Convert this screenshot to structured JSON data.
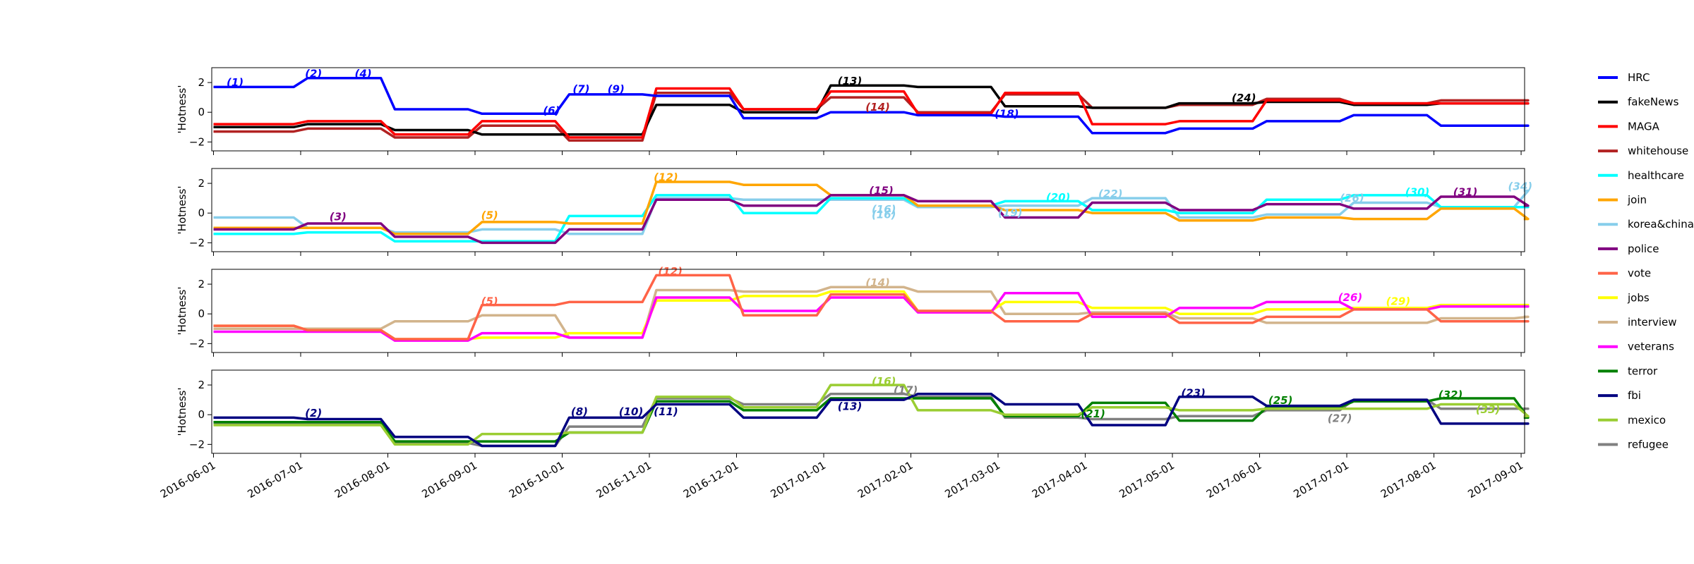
{
  "chart_data": {
    "type": "line",
    "ylabel": "'Hotness'",
    "x_dates": [
      "2016-06-01",
      "2016-07-01",
      "2016-08-01",
      "2016-09-01",
      "2016-10-01",
      "2016-11-01",
      "2016-12-01",
      "2017-01-01",
      "2017-02-01",
      "2017-03-01",
      "2017-04-01",
      "2017-05-01",
      "2017-06-01",
      "2017-07-01",
      "2017-08-01",
      "2017-09-01"
    ],
    "xlim": [
      -0.02,
      15.04
    ],
    "ylim": [
      -2.6,
      3.0
    ],
    "y_ticks": [
      -2,
      0,
      2
    ],
    "series_colors": {
      "HRC": "#0000ff",
      "fakeNews": "#000000",
      "MAGA": "#ff0000",
      "whitehouse": "#b22222",
      "healthcare": "#00ffff",
      "join": "#ffa500",
      "korea&china": "#87ceeb",
      "police": "#800080",
      "vote": "#ff6347",
      "jobs": "#ffff00",
      "interview": "#d2b48c",
      "veterans": "#ff00ff",
      "terror": "#008000",
      "fbi": "#000080",
      "mexico": "#9acd32",
      "refugee": "#808080"
    },
    "legend": [
      "HRC",
      "fakeNews",
      "MAGA",
      "whitehouse",
      "healthcare",
      "join",
      "korea&china",
      "police",
      "vote",
      "jobs",
      "interview",
      "veterans",
      "terror",
      "fbi",
      "mexico",
      "refugee"
    ],
    "panels": [
      {
        "series": [
          {
            "name": "whitehouse",
            "values": [
              -1.3,
              -1.1,
              -1.7,
              -0.9,
              -1.9,
              1.3,
              0.2,
              1.0,
              0.0,
              1.2,
              0.3,
              0.5,
              0.9,
              0.6,
              0.8,
              0.8
            ]
          },
          {
            "name": "fakeNews",
            "values": [
              -1.0,
              -0.8,
              -1.2,
              -1.5,
              -1.5,
              0.5,
              0.0,
              1.8,
              1.7,
              0.4,
              0.3,
              0.6,
              0.7,
              0.5,
              0.6,
              0.6
            ]
          },
          {
            "name": "MAGA",
            "values": [
              -0.8,
              -0.6,
              -1.5,
              -0.6,
              -1.7,
              1.6,
              0.2,
              1.4,
              -0.1,
              1.3,
              -0.8,
              -0.6,
              0.8,
              0.6,
              0.6,
              0.6
            ]
          },
          {
            "name": "HRC",
            "values": [
              1.7,
              2.3,
              0.2,
              -0.1,
              1.2,
              1.1,
              -0.4,
              0.0,
              -0.2,
              -0.3,
              -1.4,
              -1.1,
              -0.6,
              -0.2,
              -0.9,
              -0.9
            ]
          }
        ],
        "annotations": [
          {
            "text": "(1)",
            "x": 0.15,
            "y": 2.0,
            "color": "#0000ff"
          },
          {
            "text": "(2)",
            "x": 1.05,
            "y": 2.6,
            "color": "#0000ff"
          },
          {
            "text": "(4)",
            "x": 1.62,
            "y": 2.6,
            "color": "#0000ff"
          },
          {
            "text": "(6)",
            "x": 3.78,
            "y": 0.1,
            "color": "#0000ff"
          },
          {
            "text": "(7)",
            "x": 4.12,
            "y": 1.55,
            "color": "#0000ff"
          },
          {
            "text": "(9)",
            "x": 4.52,
            "y": 1.55,
            "color": "#0000ff"
          },
          {
            "text": "(13)",
            "x": 7.16,
            "y": 2.1,
            "color": "#000000"
          },
          {
            "text": "(14)",
            "x": 7.48,
            "y": 0.35,
            "color": "#b22222"
          },
          {
            "text": "(18)",
            "x": 8.96,
            "y": -0.1,
            "color": "#0000ff"
          },
          {
            "text": "(24)",
            "x": 11.68,
            "y": 0.95,
            "color": "#000000"
          }
        ]
      },
      {
        "series": [
          {
            "name": "korea&china",
            "values": [
              -0.3,
              -1.0,
              -1.3,
              -1.1,
              -1.4,
              1.0,
              0.9,
              0.9,
              0.4,
              0.5,
              1.0,
              -0.3,
              -0.1,
              0.7,
              0.4,
              1.5
            ]
          },
          {
            "name": "healthcare",
            "values": [
              -1.4,
              -1.3,
              -1.9,
              -1.9,
              -0.2,
              1.2,
              0.0,
              1.0,
              0.5,
              0.8,
              0.2,
              0.0,
              0.9,
              1.2,
              0.4,
              0.4
            ]
          },
          {
            "name": "join",
            "values": [
              -1.0,
              -1.0,
              -1.4,
              -0.6,
              -0.7,
              2.1,
              1.9,
              1.2,
              0.5,
              0.2,
              0.0,
              -0.5,
              -0.3,
              -0.4,
              0.3,
              -0.4
            ]
          },
          {
            "name": "police",
            "values": [
              -1.1,
              -0.7,
              -1.6,
              -2.0,
              -1.1,
              0.9,
              0.5,
              1.2,
              0.8,
              -0.3,
              0.7,
              0.2,
              0.6,
              0.3,
              1.1,
              0.5
            ]
          }
        ],
        "annotations": [
          {
            "text": "(3)",
            "x": 1.33,
            "y": -0.25,
            "color": "#800080"
          },
          {
            "text": "(5)",
            "x": 3.07,
            "y": -0.15,
            "color": "#ffa500"
          },
          {
            "text": "(12)",
            "x": 5.05,
            "y": 2.4,
            "color": "#ffa500"
          },
          {
            "text": "(15)",
            "x": 7.52,
            "y": 1.5,
            "color": "#800080"
          },
          {
            "text": "(16)",
            "x": 7.55,
            "y": 0.25,
            "color": "#87ceeb"
          },
          {
            "text": "(16)",
            "x": 7.55,
            "y": -0.1,
            "color": "#87ceeb"
          },
          {
            "text": "(19)",
            "x": 9.0,
            "y": 0.0,
            "color": "#87ceeb"
          },
          {
            "text": "(20)",
            "x": 9.55,
            "y": 1.05,
            "color": "#00ffff"
          },
          {
            "text": "(22)",
            "x": 10.15,
            "y": 1.3,
            "color": "#87ceeb"
          },
          {
            "text": "(26)",
            "x": 12.92,
            "y": 1.0,
            "color": "#87ceeb"
          },
          {
            "text": "(30)",
            "x": 13.67,
            "y": 1.4,
            "color": "#00ffff"
          },
          {
            "text": "(31)",
            "x": 14.22,
            "y": 1.4,
            "color": "#800080"
          },
          {
            "text": "(34)",
            "x": 14.85,
            "y": 1.8,
            "color": "#87ceeb"
          }
        ]
      },
      {
        "series": [
          {
            "name": "interview",
            "values": [
              -1.0,
              -1.0,
              -0.5,
              -0.1,
              -1.6,
              1.6,
              1.5,
              1.8,
              1.5,
              0.0,
              0.1,
              -0.3,
              -0.6,
              -0.6,
              -0.3,
              -0.2
            ]
          },
          {
            "name": "jobs",
            "values": [
              -0.8,
              -1.1,
              -1.7,
              -1.6,
              -1.3,
              0.9,
              1.2,
              1.5,
              0.2,
              0.8,
              0.4,
              0.0,
              0.3,
              0.4,
              0.6,
              0.6
            ]
          },
          {
            "name": "veterans",
            "values": [
              -1.2,
              -1.2,
              -1.8,
              -1.3,
              -1.6,
              1.1,
              0.2,
              1.1,
              0.1,
              1.4,
              -0.2,
              0.4,
              0.8,
              0.3,
              0.5,
              0.5
            ]
          },
          {
            "name": "vote",
            "values": [
              -0.8,
              -1.1,
              -1.7,
              0.6,
              0.8,
              2.6,
              -0.1,
              1.3,
              0.2,
              -0.5,
              0.0,
              -0.6,
              -0.2,
              0.3,
              -0.5,
              -0.5
            ]
          }
        ],
        "annotations": [
          {
            "text": "(5)",
            "x": 3.07,
            "y": 0.85,
            "color": "#ff6347"
          },
          {
            "text": "(12)",
            "x": 5.1,
            "y": 2.85,
            "color": "#ff6347"
          },
          {
            "text": "(14)",
            "x": 7.48,
            "y": 2.1,
            "color": "#d2b48c"
          },
          {
            "text": "(26)",
            "x": 12.9,
            "y": 1.1,
            "color": "#ff00ff"
          },
          {
            "text": "(29)",
            "x": 13.45,
            "y": 0.85,
            "color": "#ffff00"
          }
        ]
      },
      {
        "series": [
          {
            "name": "refugee",
            "values": [
              -0.6,
              -0.6,
              -1.9,
              -2.1,
              -0.8,
              1.1,
              0.7,
              1.4,
              1.2,
              -0.2,
              -0.3,
              -0.1,
              0.3,
              1.0,
              0.4,
              0.4
            ]
          },
          {
            "name": "terror",
            "values": [
              -0.5,
              -0.5,
              -1.8,
              -1.8,
              -1.2,
              0.9,
              0.3,
              1.1,
              1.1,
              -0.1,
              0.8,
              -0.4,
              0.5,
              0.9,
              1.1,
              -0.2
            ]
          },
          {
            "name": "mexico",
            "values": [
              -0.7,
              -0.7,
              -2.0,
              -1.3,
              -1.2,
              1.2,
              0.5,
              2.0,
              0.3,
              0.0,
              0.5,
              0.3,
              0.4,
              0.4,
              0.7,
              -0.1
            ]
          },
          {
            "name": "fbi",
            "values": [
              -0.2,
              -0.3,
              -1.5,
              -2.1,
              -0.2,
              0.7,
              -0.2,
              1.0,
              1.4,
              0.7,
              -0.7,
              1.2,
              0.6,
              1.0,
              -0.6,
              -0.6
            ]
          }
        ],
        "annotations": [
          {
            "text": "(2)",
            "x": 1.05,
            "y": 0.1,
            "color": "#000080"
          },
          {
            "text": "(8)",
            "x": 4.1,
            "y": 0.2,
            "color": "#000080"
          },
          {
            "text": "(10)",
            "x": 4.65,
            "y": 0.2,
            "color": "#000080"
          },
          {
            "text": "(11)",
            "x": 5.05,
            "y": 0.2,
            "color": "#000080"
          },
          {
            "text": "(13)",
            "x": 7.16,
            "y": 0.55,
            "color": "#000080"
          },
          {
            "text": "(16)",
            "x": 7.55,
            "y": 2.25,
            "color": "#9acd32"
          },
          {
            "text": "(17)",
            "x": 7.8,
            "y": 1.65,
            "color": "#808080"
          },
          {
            "text": "(21)",
            "x": 9.95,
            "y": 0.05,
            "color": "#008000"
          },
          {
            "text": "(23)",
            "x": 11.1,
            "y": 1.45,
            "color": "#000080"
          },
          {
            "text": "(25)",
            "x": 12.1,
            "y": 0.95,
            "color": "#008000"
          },
          {
            "text": "(27)",
            "x": 12.78,
            "y": -0.25,
            "color": "#808080"
          },
          {
            "text": "(32)",
            "x": 14.05,
            "y": 1.35,
            "color": "#008000"
          },
          {
            "text": "(33)",
            "x": 14.48,
            "y": 0.35,
            "color": "#9acd32"
          }
        ]
      }
    ]
  }
}
